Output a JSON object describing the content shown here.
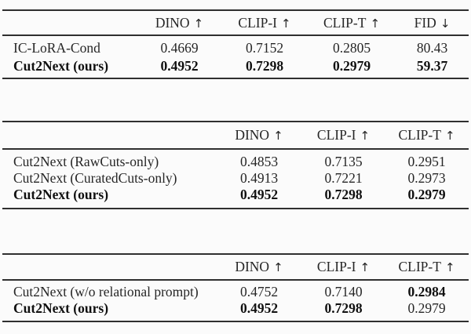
{
  "page": {
    "description": "Three quantitative evaluation tables comparing Cut2Next against baselines and ablations"
  },
  "colors": {
    "background": "#fbfbfb",
    "text": "#262626",
    "bold_text": "#101010",
    "rule": "#2f2f2f"
  },
  "tables": [
    {
      "id": "quantitative-comparison",
      "headers": [
        {
          "label": "",
          "arrow": ""
        },
        {
          "label": "DINO",
          "arrow": "↑"
        },
        {
          "label": "CLIP-I",
          "arrow": "↑"
        },
        {
          "label": "CLIP-T",
          "arrow": "↑"
        },
        {
          "label": "FID",
          "arrow": "↓"
        }
      ],
      "rows": [
        {
          "cells": [
            "IC-LoRA-Cond",
            "0.4669",
            "0.7152",
            "0.2805",
            "80.43"
          ],
          "bold": [
            false,
            false,
            false,
            false,
            false
          ]
        },
        {
          "cells": [
            "Cut2Next (ours)",
            "0.4952",
            "0.7298",
            "0.2979",
            "59.37"
          ],
          "bold": [
            true,
            true,
            true,
            true,
            true
          ]
        }
      ]
    },
    {
      "id": "data-ablation",
      "headers": [
        {
          "label": "",
          "arrow": ""
        },
        {
          "label": "DINO",
          "arrow": "↑"
        },
        {
          "label": "CLIP-I",
          "arrow": "↑"
        },
        {
          "label": "CLIP-T",
          "arrow": "↑"
        }
      ],
      "rows": [
        {
          "cells": [
            "Cut2Next (RawCuts-only)",
            "0.4853",
            "0.7135",
            "0.2951"
          ],
          "bold": [
            false,
            false,
            false,
            false
          ]
        },
        {
          "cells": [
            "Cut2Next (CuratedCuts-only)",
            "0.4913",
            "0.7221",
            "0.2973"
          ],
          "bold": [
            false,
            false,
            false,
            false
          ]
        },
        {
          "cells": [
            "Cut2Next (ours)",
            "0.4952",
            "0.7298",
            "0.2979"
          ],
          "bold": [
            true,
            true,
            true,
            true
          ]
        }
      ]
    },
    {
      "id": "prompt-ablation",
      "headers": [
        {
          "label": "",
          "arrow": ""
        },
        {
          "label": "DINO",
          "arrow": "↑"
        },
        {
          "label": "CLIP-I",
          "arrow": "↑"
        },
        {
          "label": "CLIP-T",
          "arrow": "↑"
        }
      ],
      "rows": [
        {
          "cells": [
            "Cut2Next (w/o relational prompt)",
            "0.4752",
            "0.7140",
            "0.2984"
          ],
          "bold": [
            false,
            false,
            false,
            true
          ]
        },
        {
          "cells": [
            "Cut2Next (ours)",
            "0.4952",
            "0.7298",
            "0.2979"
          ],
          "bold": [
            true,
            true,
            true,
            false
          ]
        }
      ]
    }
  ]
}
